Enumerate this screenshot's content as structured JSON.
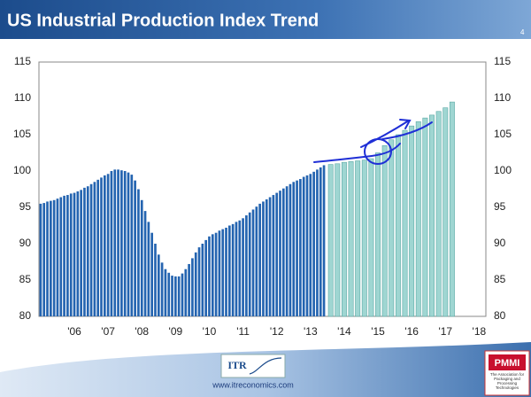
{
  "chart_data": {
    "type": "bar",
    "title": "US Industrial Production Index Trend",
    "series": [
      {
        "color": "#2464b0",
        "x": [
          2005.0,
          2005.1,
          2005.2,
          2005.3,
          2005.4,
          2005.5,
          2005.6,
          2005.7,
          2005.8,
          2005.9,
          2006.0,
          2006.1,
          2006.2,
          2006.3,
          2006.4,
          2006.5,
          2006.6,
          2006.7,
          2006.8,
          2006.9,
          2007.0,
          2007.1,
          2007.2,
          2007.3,
          2007.4,
          2007.5,
          2007.6,
          2007.7,
          2007.8,
          2007.9,
          2008.0,
          2008.1,
          2008.2,
          2008.3,
          2008.4,
          2008.5,
          2008.6,
          2008.7,
          2008.8,
          2008.9,
          2009.0,
          2009.1,
          2009.2,
          2009.3,
          2009.4,
          2009.5,
          2009.6,
          2009.7,
          2009.8,
          2009.9,
          2010.0,
          2010.1,
          2010.2,
          2010.3,
          2010.4,
          2010.5,
          2010.6,
          2010.7,
          2010.8,
          2010.9,
          2011.0,
          2011.1,
          2011.2,
          2011.3,
          2011.4,
          2011.5,
          2011.6,
          2011.7,
          2011.8,
          2011.9,
          2012.0,
          2012.1,
          2012.2,
          2012.3,
          2012.4,
          2012.5,
          2012.6,
          2012.7,
          2012.8,
          2012.9,
          2013.0,
          2013.1,
          2013.2,
          2013.3,
          2013.4
        ],
        "values": [
          95.5,
          95.6,
          95.8,
          95.9,
          96.0,
          96.2,
          96.4,
          96.6,
          96.7,
          96.9,
          97.0,
          97.2,
          97.4,
          97.7,
          97.9,
          98.2,
          98.5,
          98.8,
          99.1,
          99.4,
          99.6,
          100.0,
          100.2,
          100.2,
          100.1,
          100.0,
          99.8,
          99.5,
          98.7,
          97.5,
          96.0,
          94.5,
          93.0,
          91.5,
          90.0,
          88.5,
          87.4,
          86.5,
          86.0,
          85.6,
          85.5,
          85.5,
          85.9,
          86.5,
          87.2,
          88.0,
          88.8,
          89.5,
          90.0,
          90.5,
          91.0,
          91.3,
          91.5,
          91.8,
          92.0,
          92.2,
          92.5,
          92.7,
          93.0,
          93.2,
          93.5,
          93.9,
          94.3,
          94.7,
          95.1,
          95.5,
          95.8,
          96.1,
          96.4,
          96.7,
          97.0,
          97.3,
          97.6,
          97.9,
          98.2,
          98.5,
          98.7,
          98.9,
          99.2,
          99.4,
          99.6,
          99.9,
          100.2,
          100.5,
          100.8
        ]
      },
      {
        "color": "#9fd6d2",
        "x": [
          2013.6,
          2013.8,
          2014.0,
          2014.2,
          2014.4,
          2014.6,
          2014.8,
          2015.0,
          2015.2,
          2015.4,
          2015.6,
          2015.8,
          2016.0,
          2016.2,
          2016.4,
          2016.6,
          2016.8,
          2017.0,
          2017.2
        ],
        "values": [
          100.9,
          101.0,
          101.2,
          101.3,
          101.4,
          101.5,
          101.7,
          102.5,
          103.5,
          104.3,
          105.0,
          105.6,
          106.2,
          106.8,
          107.3,
          107.7,
          108.2,
          108.7,
          109.5
        ]
      }
    ],
    "xlim": [
      2004.95,
      2018.2
    ],
    "xticks": [
      {
        "value": 2006,
        "label": "'06"
      },
      {
        "value": 2007,
        "label": "'07"
      },
      {
        "value": 2008,
        "label": "'08"
      },
      {
        "value": 2009,
        "label": "'09"
      },
      {
        "value": 2010,
        "label": "'10"
      },
      {
        "value": 2011,
        "label": "'11"
      },
      {
        "value": 2012,
        "label": "'12"
      },
      {
        "value": 2013,
        "label": "'13"
      },
      {
        "value": 2014,
        "label": "'14"
      },
      {
        "value": 2015,
        "label": "'15"
      },
      {
        "value": 2016,
        "label": "'16"
      },
      {
        "value": 2017,
        "label": "'17"
      },
      {
        "value": 2018,
        "label": "'18"
      }
    ],
    "ylim": [
      80,
      115
    ],
    "yticks": [
      80,
      85,
      90,
      95,
      100,
      105,
      110,
      115
    ],
    "grid": false
  },
  "header": {
    "page_number": "4"
  },
  "footer": {
    "itr_logo": "ITR",
    "url": "www.itreconomics.com",
    "pmmi_logo": "PMMI",
    "pmmi_tagline": "The Association for Packaging and Processing Technologies"
  }
}
